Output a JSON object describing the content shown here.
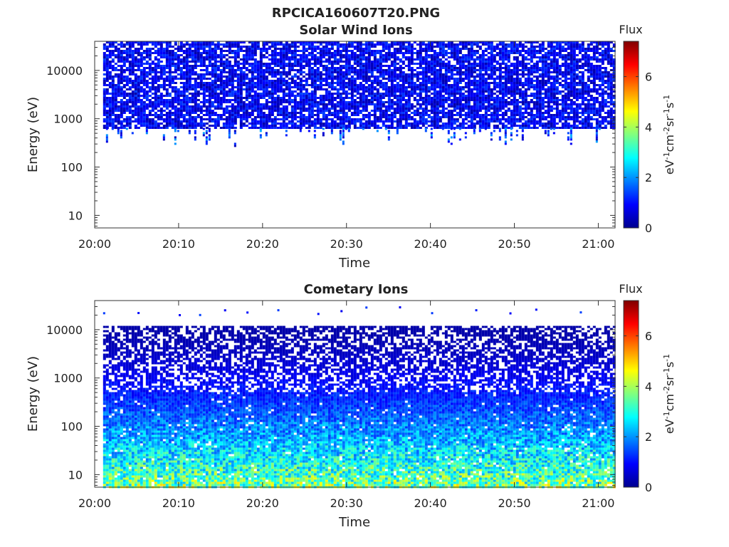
{
  "figure_title": "RPCICA160607T20.PNG",
  "chart_data": [
    {
      "type": "heatmap",
      "title": "Solar Wind Ions",
      "xlabel": "Time",
      "ylabel": "Energy (eV)",
      "x_ticks": [
        "20:00",
        "20:10",
        "20:20",
        "20:30",
        "20:40",
        "20:50",
        "21:00"
      ],
      "y_ticks": [
        "10",
        "100",
        "1000",
        "10000"
      ],
      "y_scale": "log",
      "xlim": [
        "20:00",
        "21:02"
      ],
      "ylim": [
        5.5,
        40000
      ],
      "data_time_range": [
        "20:01",
        "21:02"
      ],
      "band_energy_range_eV": [
        650,
        40000
      ],
      "sparse_energy_range_eV": [
        280,
        650
      ],
      "flux_level_range": [
        0.3,
        1.4
      ],
      "colorbar": {
        "title": "Flux",
        "label": "eV-1cm-2sr-1s-1",
        "ticks": [
          "0",
          "2",
          "4",
          "6"
        ],
        "range": [
          0,
          7.4
        ],
        "colormap": "jet"
      },
      "grid": false
    },
    {
      "type": "heatmap",
      "title": "Cometary Ions",
      "xlabel": "Time",
      "ylabel": "Energy (eV)",
      "x_ticks": [
        "20:00",
        "20:10",
        "20:20",
        "20:30",
        "20:40",
        "20:50",
        "21:00"
      ],
      "y_ticks": [
        "10",
        "100",
        "1000",
        "10000"
      ],
      "y_scale": "log",
      "xlim": [
        "20:00",
        "21:02"
      ],
      "ylim": [
        5.5,
        40000
      ],
      "data_time_range": [
        "20:01",
        "21:02"
      ],
      "band_energy_range_eV": [
        5.5,
        12000
      ],
      "flux_level_range": [
        0.3,
        4.0
      ],
      "colorbar": {
        "title": "Flux",
        "label": "eV-1cm-2sr-1s-1",
        "ticks": [
          "0",
          "2",
          "4",
          "6"
        ],
        "range": [
          0,
          7.4
        ],
        "colormap": "jet"
      },
      "grid": false
    }
  ]
}
